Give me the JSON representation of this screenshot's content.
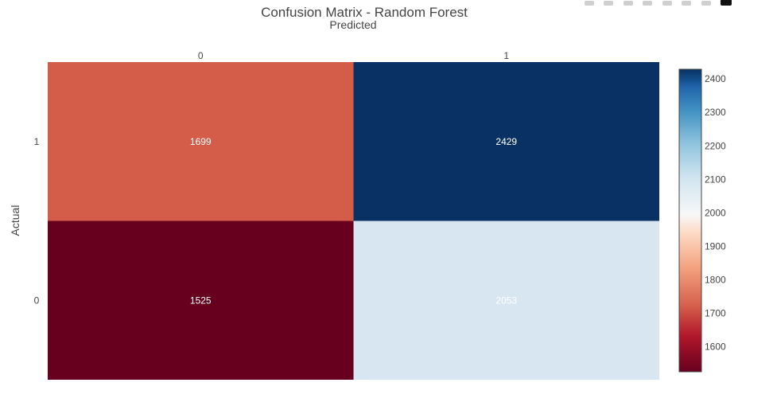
{
  "chart_data": {
    "type": "heatmap",
    "title": "Confusion Matrix - Random Forest",
    "xlabel": "Predicted",
    "ylabel": "Actual",
    "x_categories": [
      "0",
      "1"
    ],
    "y_categories": [
      "1",
      "0"
    ],
    "values": [
      [
        1699,
        2429
      ],
      [
        1525,
        2053
      ]
    ],
    "colorscale": "RdBu",
    "zmin": 1525,
    "zmax": 2429,
    "colorbar": {
      "ticks": [
        2400,
        2300,
        2200,
        2100,
        2000,
        1900,
        1800,
        1700,
        1600
      ]
    },
    "cell_colors": [
      [
        "#d45d4a",
        "#0a3163"
      ],
      [
        "#67001f",
        "#d7e6f0"
      ]
    ],
    "text_colors": [
      [
        "#ffffff",
        "#ffffff"
      ],
      [
        "#ffffff",
        "#ffffff"
      ]
    ]
  }
}
